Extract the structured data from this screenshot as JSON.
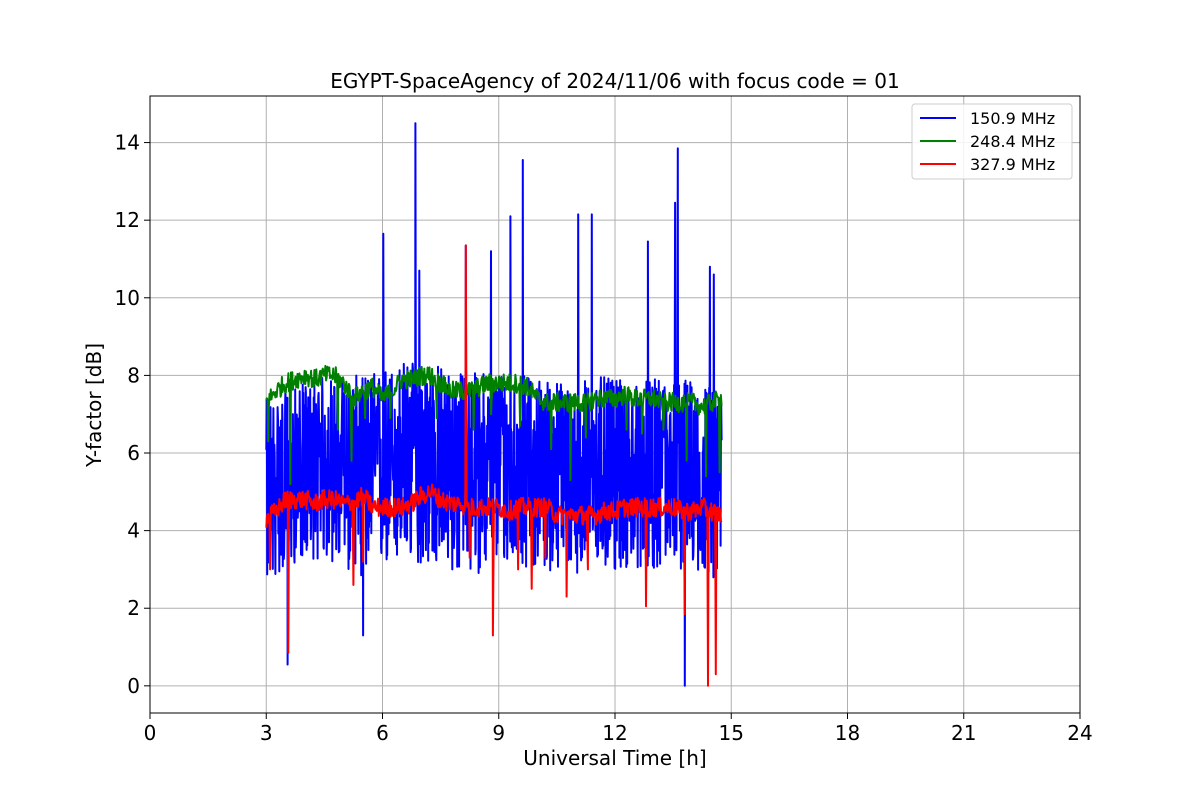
{
  "chart_data": {
    "type": "line",
    "title": "EGYPT-SpaceAgency of 2024/11/06 with focus code = 01",
    "xlabel": "Universal Time [h]",
    "ylabel": "Y-factor [dB]",
    "xlim": [
      0,
      24
    ],
    "ylim": [
      -0.7,
      15.2
    ],
    "xticks": [
      0,
      3,
      6,
      9,
      12,
      15,
      18,
      21,
      24
    ],
    "yticks": [
      0,
      2,
      4,
      6,
      8,
      10,
      12,
      14
    ],
    "grid": true,
    "legend_position": "top-right",
    "series": [
      {
        "name": "150.9 MHz",
        "color": "#0000ff",
        "x": [
          3.0,
          3.5,
          4.0,
          4.5,
          5.0,
          5.5,
          6.0,
          6.5,
          7.0,
          7.5,
          8.0,
          8.5,
          9.0,
          9.5,
          10.0,
          10.5,
          11.0,
          11.5,
          12.0,
          12.5,
          13.0,
          13.5,
          14.0,
          14.5,
          14.75
        ],
        "y": [
          5.5,
          5.2,
          5.6,
          5.6,
          5.5,
          5.8,
          5.8,
          6.0,
          6.0,
          5.9,
          5.8,
          5.8,
          5.9,
          5.8,
          5.8,
          5.7,
          5.7,
          5.6,
          5.7,
          5.6,
          5.7,
          5.7,
          5.6,
          5.6,
          5.3
        ],
        "band_low": [
          2.5,
          3.0,
          3.3,
          3.2,
          3.0,
          2.8,
          3.0,
          3.1,
          3.1,
          3.0,
          2.8,
          2.9,
          3.0,
          3.1,
          3.0,
          2.9,
          2.9,
          3.0,
          2.9,
          3.0,
          3.0,
          3.0,
          2.9,
          2.8,
          2.6
        ],
        "band_high": [
          7.4,
          7.6,
          7.8,
          8.0,
          8.0,
          8.0,
          8.2,
          8.4,
          8.4,
          8.3,
          8.1,
          8.1,
          8.2,
          8.0,
          8.0,
          7.9,
          7.9,
          8.0,
          7.9,
          7.8,
          7.9,
          8.0,
          7.9,
          7.8,
          7.4
        ],
        "spikes": [
          [
            3.55,
            0.55
          ],
          [
            5.5,
            1.3
          ],
          [
            6.02,
            11.65
          ],
          [
            6.85,
            14.5
          ],
          [
            6.95,
            10.7
          ],
          [
            8.15,
            11.35
          ],
          [
            8.8,
            11.2
          ],
          [
            9.3,
            12.1
          ],
          [
            9.62,
            13.55
          ],
          [
            11.05,
            12.15
          ],
          [
            11.4,
            12.15
          ],
          [
            12.85,
            11.45
          ],
          [
            13.55,
            12.45
          ],
          [
            13.62,
            13.85
          ],
          [
            13.8,
            0.0
          ],
          [
            14.45,
            10.8
          ],
          [
            14.55,
            10.6
          ]
        ]
      },
      {
        "name": "248.4 MHz",
        "color": "#008000",
        "x": [
          3.0,
          3.25,
          3.5,
          3.75,
          4.0,
          4.25,
          4.5,
          4.75,
          5.0,
          5.25,
          5.5,
          5.75,
          6.0,
          6.25,
          6.5,
          6.75,
          7.0,
          7.25,
          7.5,
          7.75,
          8.0,
          8.25,
          8.5,
          8.75,
          9.0,
          9.25,
          9.5,
          9.75,
          10.0,
          10.25,
          10.5,
          10.75,
          11.0,
          11.25,
          11.5,
          11.75,
          12.0,
          12.25,
          12.5,
          12.75,
          13.0,
          13.25,
          13.5,
          13.75,
          14.0,
          14.25,
          14.5,
          14.75
        ],
        "y": [
          7.3,
          7.6,
          7.8,
          7.9,
          8.0,
          7.9,
          8.0,
          8.0,
          7.8,
          7.4,
          7.6,
          7.7,
          7.4,
          7.6,
          7.9,
          7.9,
          8.0,
          8.0,
          7.8,
          7.6,
          7.6,
          7.6,
          7.7,
          7.8,
          7.8,
          7.8,
          7.8,
          7.7,
          7.4,
          7.3,
          7.3,
          7.3,
          7.3,
          7.3,
          7.4,
          7.4,
          7.4,
          7.5,
          7.4,
          7.4,
          7.4,
          7.3,
          7.3,
          7.3,
          7.3,
          7.2,
          7.3,
          7.4
        ],
        "spikes": [
          [
            3.05,
            6.3
          ],
          [
            3.62,
            5.2
          ],
          [
            4.85,
            6.6
          ],
          [
            5.2,
            5.8
          ],
          [
            5.55,
            6.9
          ],
          [
            6.2,
            6.9
          ],
          [
            7.4,
            6.9
          ],
          [
            8.35,
            6.6
          ],
          [
            8.8,
            7.0
          ],
          [
            9.55,
            6.7
          ],
          [
            10.35,
            6.1
          ],
          [
            10.85,
            5.3
          ],
          [
            11.25,
            6.4
          ],
          [
            12.3,
            6.6
          ],
          [
            12.7,
            6.5
          ],
          [
            13.25,
            6.6
          ],
          [
            13.85,
            5.8
          ],
          [
            14.35,
            5.4
          ],
          [
            14.7,
            5.5
          ]
        ]
      },
      {
        "name": "327.9 MHz",
        "color": "#ff0000",
        "x": [
          3.0,
          3.25,
          3.5,
          3.75,
          4.0,
          4.25,
          4.5,
          4.75,
          5.0,
          5.25,
          5.5,
          5.75,
          6.0,
          6.25,
          6.5,
          6.75,
          7.0,
          7.25,
          7.5,
          7.75,
          8.0,
          8.25,
          8.5,
          8.75,
          9.0,
          9.25,
          9.5,
          9.75,
          10.0,
          10.25,
          10.5,
          10.75,
          11.0,
          11.25,
          11.5,
          11.75,
          12.0,
          12.25,
          12.5,
          12.75,
          13.0,
          13.25,
          13.5,
          13.75,
          14.0,
          14.25,
          14.5,
          14.75
        ],
        "y": [
          4.3,
          4.5,
          4.8,
          4.8,
          4.8,
          4.7,
          4.8,
          4.8,
          4.7,
          4.7,
          4.9,
          4.6,
          4.6,
          4.6,
          4.6,
          4.7,
          4.9,
          5.0,
          4.8,
          4.7,
          4.7,
          4.6,
          4.6,
          4.6,
          4.6,
          4.5,
          4.6,
          4.6,
          4.6,
          4.6,
          4.4,
          4.4,
          4.4,
          4.4,
          4.4,
          4.5,
          4.5,
          4.6,
          4.6,
          4.6,
          4.6,
          4.6,
          4.6,
          4.5,
          4.5,
          4.6,
          4.5,
          4.4
        ],
        "spikes": [
          [
            3.1,
            3.0
          ],
          [
            3.57,
            0.85
          ],
          [
            5.25,
            2.6
          ],
          [
            5.5,
            3.2
          ],
          [
            8.15,
            11.35
          ],
          [
            8.25,
            3.3
          ],
          [
            8.85,
            1.3
          ],
          [
            9.5,
            3.0
          ],
          [
            9.85,
            2.5
          ],
          [
            10.2,
            3.3
          ],
          [
            10.75,
            2.3
          ],
          [
            11.3,
            3.0
          ],
          [
            12.8,
            2.05
          ],
          [
            13.8,
            1.85
          ],
          [
            14.4,
            0.0
          ],
          [
            14.6,
            0.3
          ]
        ]
      }
    ]
  }
}
